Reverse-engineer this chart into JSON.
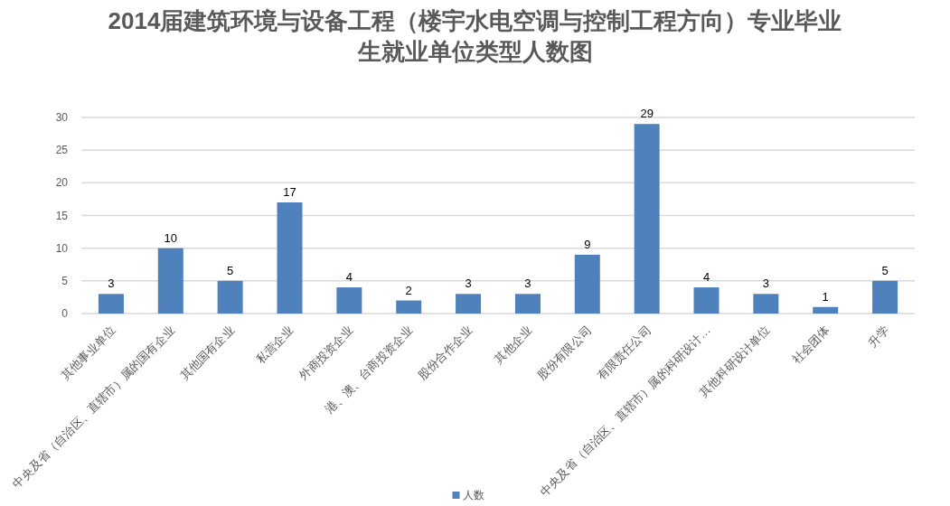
{
  "chart_data": {
    "type": "bar",
    "title": "2014届建筑环境与设备工程（楼宇水电空调与控制工程方向）专业毕业生就业单位类型人数图",
    "categories": [
      "其他事业单位",
      "中央及省（自治区、直辖市）属的国有企业",
      "其他国有企业",
      "私营企业",
      "外商投资企业",
      "港、澳、台商投资企业",
      "股份合作企业",
      "其他企业",
      "股份有限公司",
      "有限责任公司",
      "中央及省（自治区、直辖市）属的科研设计…",
      "其他科研设计单位",
      "社会团体",
      "升学"
    ],
    "series": [
      {
        "name": "人数",
        "color": "#4f81bd",
        "values": [
          3,
          10,
          5,
          17,
          4,
          2,
          3,
          3,
          9,
          29,
          4,
          3,
          1,
          5
        ]
      }
    ],
    "ylim": [
      0,
      30
    ],
    "yticks": [
      0,
      5,
      10,
      15,
      20,
      25,
      30
    ],
    "grid": "y",
    "legend": "bottom",
    "data_labels": true
  }
}
